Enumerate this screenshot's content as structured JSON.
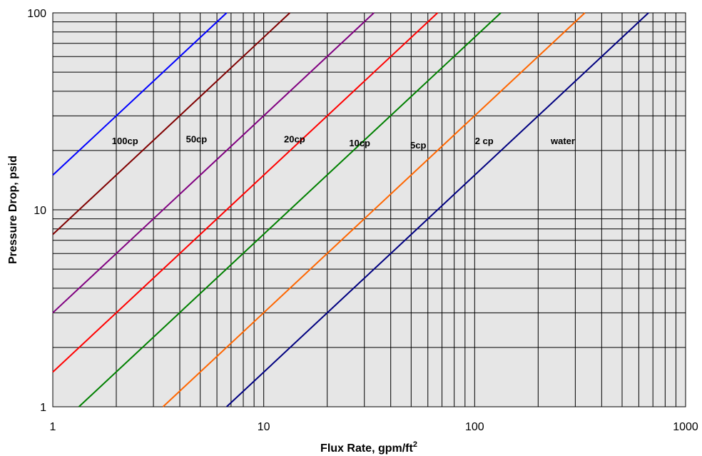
{
  "chart_data": {
    "type": "line",
    "xlabel": "Flux Rate, gpm/ft",
    "xlabel_sup": "2",
    "ylabel": "Pressure Drop, psid",
    "xscale": "log",
    "yscale": "log",
    "xlim": [
      1,
      1000
    ],
    "ylim": [
      1,
      100
    ],
    "grid": true,
    "x_ticks": [
      "1",
      "10",
      "100",
      "1000"
    ],
    "y_ticks": [
      "1",
      "10",
      "100"
    ],
    "colors": {
      "plot_background": "#e6e6e6",
      "grid": "#000000"
    },
    "series": [
      {
        "name": "100cp",
        "color": "#0000ff",
        "x": [
          1,
          6.67
        ],
        "y": [
          15,
          100
        ],
        "label_at": [
          2.2,
          21.5
        ]
      },
      {
        "name": "50cp",
        "color": "#800000",
        "x": [
          1,
          13.3
        ],
        "y": [
          7.5,
          100
        ],
        "label_at": [
          4.8,
          22
        ]
      },
      {
        "name": "20cp",
        "color": "#800080",
        "x": [
          1,
          33.3
        ],
        "y": [
          3,
          100
        ],
        "label_at": [
          14,
          22
        ]
      },
      {
        "name": "10cp",
        "color": "#ff0000",
        "x": [
          1,
          66.7
        ],
        "y": [
          1.5,
          100
        ],
        "label_at": [
          28.5,
          21
        ]
      },
      {
        "name": "5cp",
        "color": "#008000",
        "x": [
          1.33,
          133
        ],
        "y": [
          1,
          100
        ],
        "label_at": [
          54,
          20.5
        ]
      },
      {
        "name": "2 cp",
        "color": "#ff6600",
        "x": [
          3.33,
          333
        ],
        "y": [
          1,
          100
        ],
        "label_at": [
          111,
          21.5
        ]
      },
      {
        "name": "water",
        "color": "#000080",
        "x": [
          6.67,
          667
        ],
        "y": [
          1,
          100
        ],
        "label_at": [
          262,
          21.5
        ]
      }
    ]
  }
}
